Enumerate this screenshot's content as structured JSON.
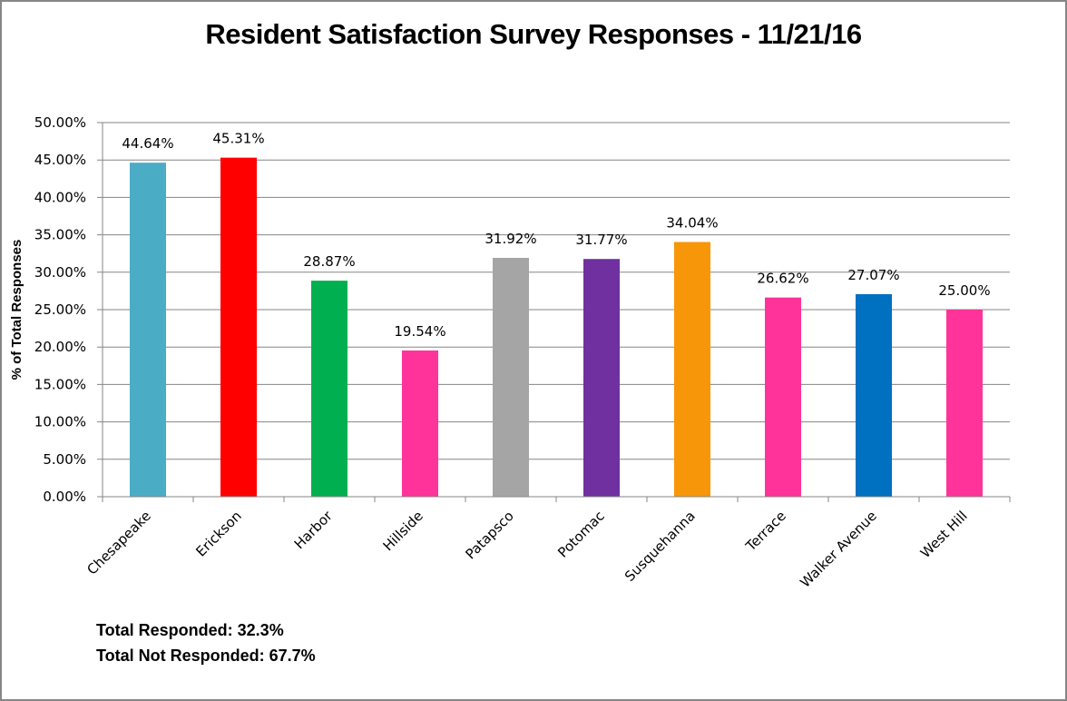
{
  "chart_data": {
    "type": "bar",
    "title": "Resident Satisfaction Survey Responses - 11/21/16",
    "xlabel": "",
    "ylabel": "% of Total Responses",
    "ylim": [
      0,
      50
    ],
    "yticks": [
      0,
      5,
      10,
      15,
      20,
      25,
      30,
      35,
      40,
      45,
      50
    ],
    "ytick_labels": [
      "0.00%",
      "5.00%",
      "10.00%",
      "15.00%",
      "20.00%",
      "25.00%",
      "30.00%",
      "35.00%",
      "40.00%",
      "45.00%",
      "50.00%"
    ],
    "grid": true,
    "legend": "none",
    "categories": [
      "Chesapeake",
      "Erickson",
      "Harbor",
      "Hillside",
      "Patapsco",
      "Potomac",
      "Susquehanna",
      "Terrace",
      "Walker Avenue",
      "West Hill"
    ],
    "values": [
      44.64,
      45.31,
      28.87,
      19.54,
      31.92,
      31.77,
      34.04,
      26.62,
      27.07,
      25.0
    ],
    "data_labels": [
      "44.64%",
      "45.31%",
      "28.87%",
      "19.54%",
      "31.92%",
      "31.77%",
      "34.04%",
      "26.62%",
      "27.07%",
      "25.00%"
    ],
    "colors": [
      "#4BACC6",
      "#FF0000",
      "#00B050",
      "#FF3399",
      "#A5A5A5",
      "#7030A0",
      "#F79609",
      "#FF3399",
      "#0070C0",
      "#FF3399"
    ]
  },
  "notes": {
    "total_responded": "Total Responded: 32.3%",
    "total_not_responded": "Total Not Responded: 67.7%"
  }
}
